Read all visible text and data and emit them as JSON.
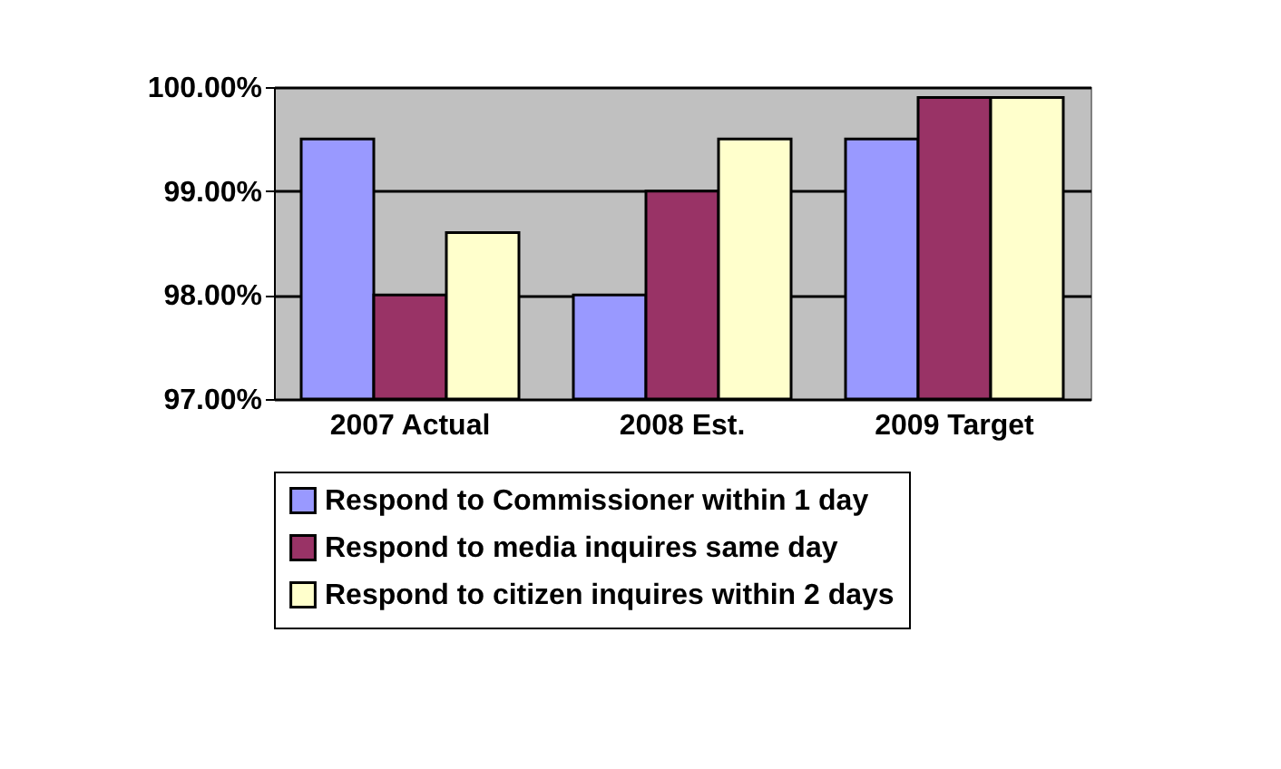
{
  "chart_data": {
    "type": "bar",
    "categories": [
      "2007 Actual",
      "2008 Est.",
      "2009 Target"
    ],
    "series": [
      {
        "name": "Respond to Commissioner within 1 day",
        "color": "#9999ff",
        "values": [
          99.5,
          98.0,
          99.5
        ]
      },
      {
        "name": "Respond to media inquires same day",
        "color": "#993366",
        "values": [
          98.0,
          99.0,
          99.9
        ]
      },
      {
        "name": "Respond to citizen inquires within 2 days",
        "color": "#ffffcc",
        "values": [
          98.6,
          99.5,
          99.9
        ]
      }
    ],
    "ylim": [
      97,
      100
    ],
    "yticks": [
      {
        "value": 97,
        "label": "97.00%"
      },
      {
        "value": 98,
        "label": "98.00%"
      },
      {
        "value": 99,
        "label": "99.00%"
      },
      {
        "value": 100,
        "label": "100.00%"
      }
    ],
    "grid": "y",
    "legend": "bottom"
  }
}
